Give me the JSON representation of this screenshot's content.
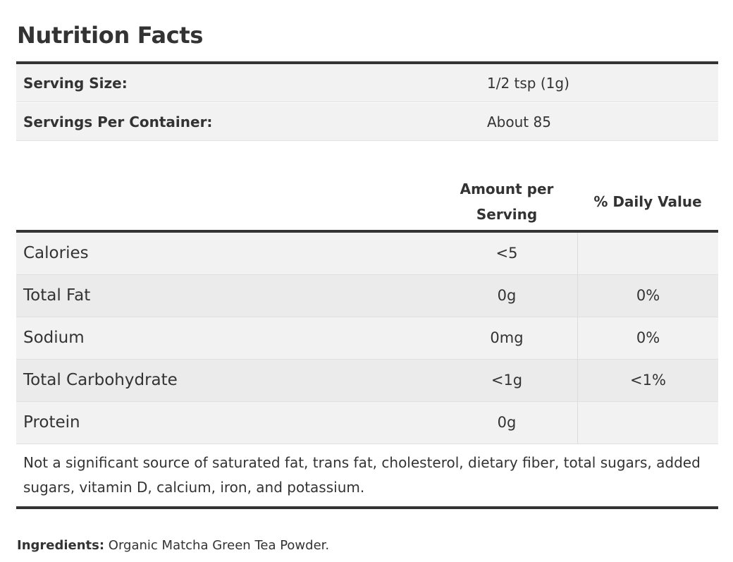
{
  "title": "Nutrition Facts",
  "serving": [
    {
      "label": "Serving Size:",
      "value": "1/2 tsp (1g)"
    },
    {
      "label": "Servings Per Container:",
      "value": "About 85"
    }
  ],
  "columns": {
    "amount_line1": "Amount per",
    "amount_line2": "Serving",
    "daily_value": "% Daily Value"
  },
  "nutrients": [
    {
      "name": "Calories",
      "amount": "<5",
      "dv": ""
    },
    {
      "name": "Total Fat",
      "amount": "0g",
      "dv": "0%"
    },
    {
      "name": "Sodium",
      "amount": "0mg",
      "dv": "0%"
    },
    {
      "name": "Total Carbohydrate",
      "amount": "<1g",
      "dv": "<1%"
    },
    {
      "name": "Protein",
      "amount": "0g",
      "dv": ""
    }
  ],
  "footnote": "Not a significant source of saturated fat, trans fat, cholesterol, dietary fiber, total sugars, added sugars, vitamin D, calcium, iron, and potassium.",
  "ingredients": {
    "label": "Ingredients:",
    "text": " Organic Matcha Green Tea Powder."
  }
}
